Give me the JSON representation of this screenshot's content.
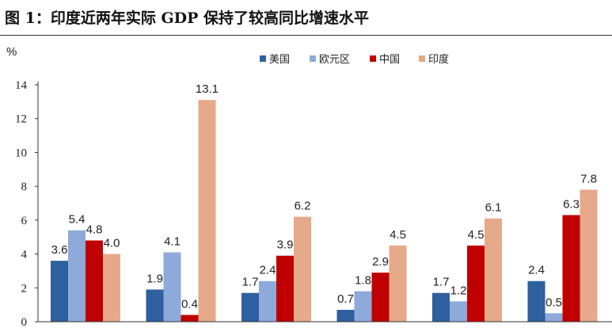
{
  "title": "图 1：印度近两年实际 GDP 保持了较高同比增速水平",
  "chart_data": {
    "type": "bar",
    "unit_label": "%",
    "categories": [
      "",
      "",
      "",
      "",
      "",
      ""
    ],
    "series": [
      {
        "name": "美国",
        "color": "#2e5f9e",
        "values": [
          3.6,
          1.9,
          1.7,
          0.7,
          1.7,
          2.4
        ]
      },
      {
        "name": "欧元区",
        "color": "#8eaadb",
        "values": [
          5.4,
          4.1,
          2.4,
          1.8,
          1.2,
          0.5
        ]
      },
      {
        "name": "中国",
        "color": "#c00000",
        "values": [
          4.8,
          0.4,
          3.9,
          2.9,
          4.5,
          6.3
        ]
      },
      {
        "name": "印度",
        "color": "#e6a98a",
        "values": [
          4.0,
          13.1,
          6.2,
          4.5,
          6.1,
          7.8
        ]
      }
    ],
    "ylim": [
      0,
      14
    ],
    "yticks": [
      0,
      2,
      4,
      6,
      8,
      10,
      12,
      14
    ],
    "grid": false,
    "legend_position": "top"
  }
}
